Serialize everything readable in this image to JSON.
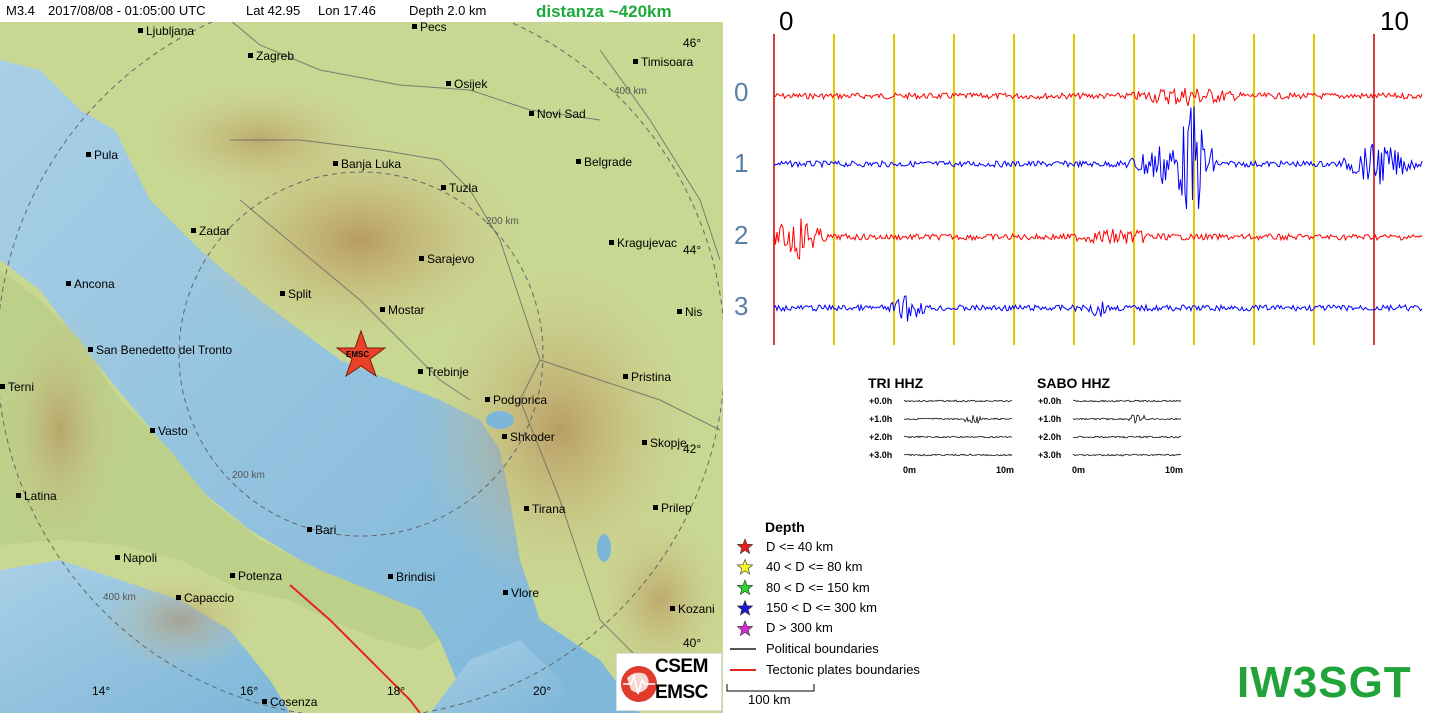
{
  "header": {
    "magnitude": "M3.4",
    "datetime": "2017/08/08 - 01:05:00 UTC",
    "lat": "Lat 42.95",
    "lon": "Lon 17.46",
    "depth": "Depth 2.0 km",
    "distance": "distanza ~420km"
  },
  "map": {
    "cities": [
      {
        "name": "Ljubljana"
      },
      {
        "name": "Pecs"
      },
      {
        "name": "Zagreb"
      },
      {
        "name": "Timisoara"
      },
      {
        "name": "Osijek"
      },
      {
        "name": "Novi Sad"
      },
      {
        "name": "Pula"
      },
      {
        "name": "Banja Luka"
      },
      {
        "name": "Belgrade"
      },
      {
        "name": "Tuzla"
      },
      {
        "name": "Zadar"
      },
      {
        "name": "Kragujevac"
      },
      {
        "name": "Sarajevo"
      },
      {
        "name": "Ancona"
      },
      {
        "name": "Split"
      },
      {
        "name": "Mostar"
      },
      {
        "name": "Nis"
      },
      {
        "name": "San Benedetto del Tronto"
      },
      {
        "name": "Trebinje"
      },
      {
        "name": "Pristina"
      },
      {
        "name": "Terni"
      },
      {
        "name": "Podgorica"
      },
      {
        "name": "Vasto"
      },
      {
        "name": "Shkoder"
      },
      {
        "name": "Skopje"
      },
      {
        "name": "Latina"
      },
      {
        "name": "Tirana"
      },
      {
        "name": "Prilep"
      },
      {
        "name": "Bari"
      },
      {
        "name": "Napoli"
      },
      {
        "name": "Brindisi"
      },
      {
        "name": "Potenza"
      },
      {
        "name": "Vlore"
      },
      {
        "name": "Capaccio"
      },
      {
        "name": "Kozani"
      },
      {
        "name": "Cosenza"
      }
    ],
    "distance_rings": [
      "400 km",
      "200 km",
      "200 km",
      "400 km"
    ],
    "lat_labels": [
      "46°",
      "44°",
      "42°",
      "40°"
    ],
    "lon_labels": [
      "14°",
      "16°",
      "18°",
      "20°"
    ],
    "epicenter_label": "EMSC",
    "epicenter_color": "#e8432a"
  },
  "seismogram": {
    "time_start": "0",
    "time_end": "10",
    "tracks": [
      "0",
      "1",
      "2",
      "3"
    ],
    "track_colors": [
      "#ff0000",
      "#0000ff",
      "#ff0000",
      "#0000ff"
    ],
    "gridline_color": "#e6c800"
  },
  "stations": [
    {
      "name": "TRI HHZ",
      "rows": [
        "+0.0h",
        "+1.0h",
        "+2.0h",
        "+3.0h"
      ],
      "axis_start": "0m",
      "axis_end": "10m"
    },
    {
      "name": "SABO HHZ",
      "rows": [
        "+0.0h",
        "+1.0h",
        "+2.0h",
        "+3.0h"
      ],
      "axis_start": "0m",
      "axis_end": "10m"
    }
  ],
  "legend": {
    "title": "Depth",
    "items": [
      {
        "label": "D <= 40 km",
        "color": "#e8211b"
      },
      {
        "label": "40 < D <= 80 km",
        "color": "#f5f52a"
      },
      {
        "label": "80 < D <= 150 km",
        "color": "#2fd32f"
      },
      {
        "label": "150 < D <= 300 km",
        "color": "#1a1ad0"
      },
      {
        "label": "D > 300 km",
        "color": "#d02fd0"
      }
    ],
    "political": "Political boundaries",
    "political_color": "#555555",
    "tectonic": "Tectonic plates boundaries",
    "tectonic_color": "#e0281e"
  },
  "logo": {
    "top": "CSEM",
    "bottom": "EMSC"
  },
  "scale": "100 km",
  "callsign": "IW3SGT"
}
